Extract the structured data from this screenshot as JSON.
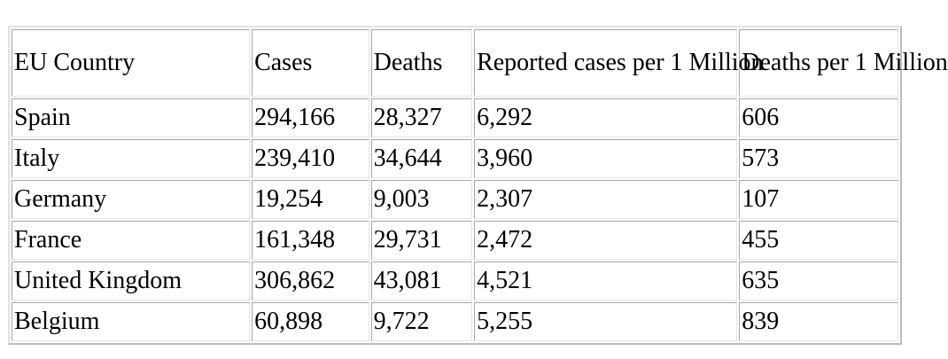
{
  "table": {
    "headers": [
      "EU Country",
      "Cases",
      "Deaths",
      "Reported cases per 1 Million",
      "Deaths per 1 Million"
    ],
    "rows": [
      [
        "Spain",
        "294,166",
        "28,327",
        "6,292",
        "606"
      ],
      [
        "Italy",
        "239,410",
        "34,644",
        "3,960",
        "573"
      ],
      [
        "Germany",
        "19,254",
        "9,003",
        "2,307",
        "107"
      ],
      [
        "France",
        "161,348",
        "29,731",
        "2,472",
        "455"
      ],
      [
        "United Kingdom",
        "306,862",
        "43,081",
        "4,521",
        "635"
      ],
      [
        "Belgium",
        "60,898",
        "9,722",
        "5,255",
        "839"
      ]
    ]
  }
}
